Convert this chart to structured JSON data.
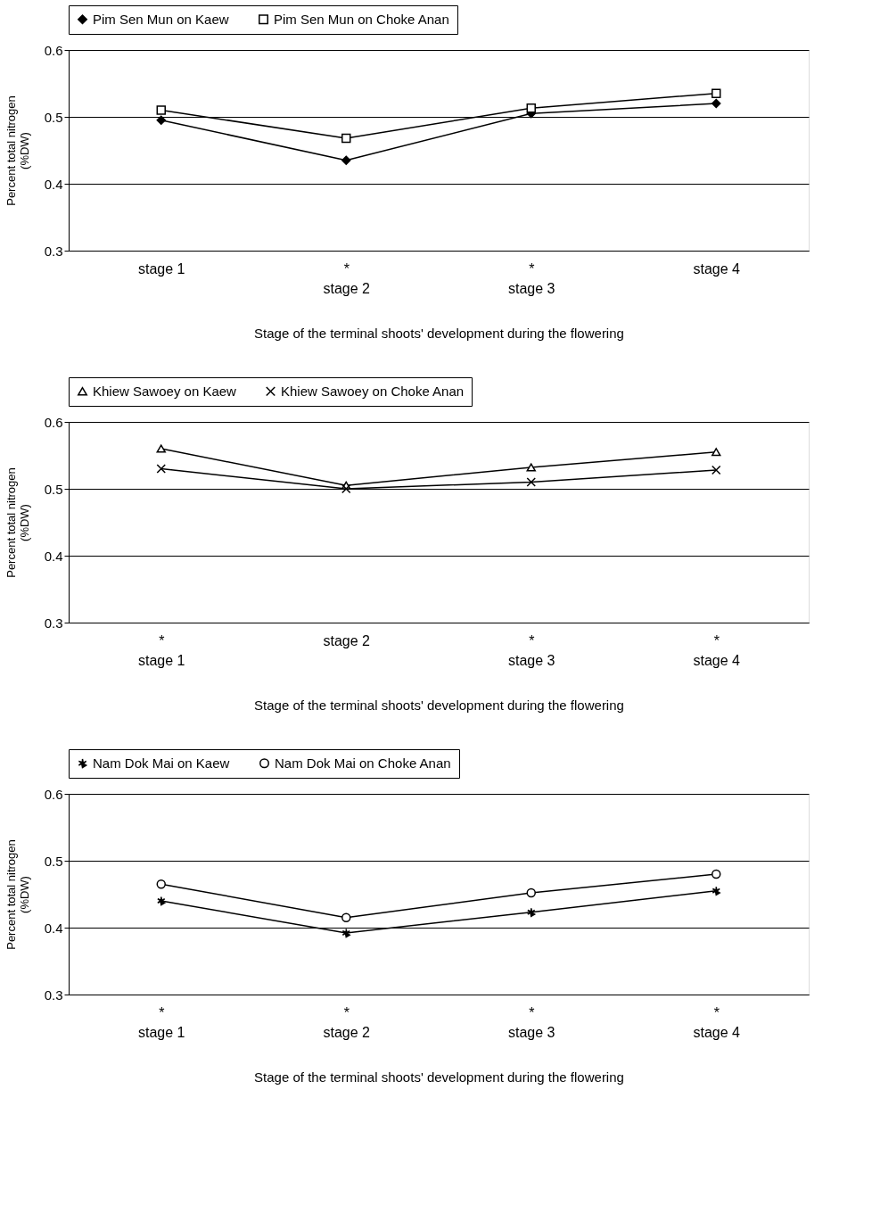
{
  "chart_data": [
    {
      "type": "line",
      "categories": [
        "stage 1",
        "*\nstage 2",
        "*\nstage 3",
        "stage 4"
      ],
      "xlabel": "Stage of the terminal shoots' development during the flowering",
      "ylabel": "Percent total nitrogen\n(%DW)",
      "ylim": [
        0.3,
        0.6
      ],
      "yticks": [
        {
          "value": 0.3,
          "label": "0.3"
        },
        {
          "value": 0.4,
          "label": "0.4"
        },
        {
          "value": 0.5,
          "label": "0.5"
        },
        {
          "value": 0.6,
          "label": "0.6"
        }
      ],
      "grid": "y",
      "legend": "top",
      "series": [
        {
          "name": "Pim Sen Mun on Kaew",
          "color": "#000000",
          "marker": "diamond",
          "values": [
            0.495,
            0.435,
            0.505,
            0.52
          ]
        },
        {
          "name": "Pim Sen Mun on Choke Anan",
          "color": "#000000",
          "marker": "square",
          "values": [
            0.51,
            0.468,
            0.513,
            0.535
          ]
        }
      ]
    },
    {
      "type": "line",
      "categories": [
        "*\nstage 1",
        "stage 2",
        "*\nstage 3",
        "*\nstage 4"
      ],
      "xlabel": "Stage of the terminal shoots' development during the flowering",
      "ylabel": "Percent total nitrogen\n(%DW)",
      "ylim": [
        0.3,
        0.6
      ],
      "yticks": [
        {
          "value": 0.3,
          "label": "0.3"
        },
        {
          "value": 0.4,
          "label": "0.4"
        },
        {
          "value": 0.5,
          "label": "0.5"
        },
        {
          "value": 0.6,
          "label": "0.6"
        }
      ],
      "grid": "y",
      "legend": "top",
      "series": [
        {
          "name": "Khiew Sawoey on Kaew",
          "color": "#000000",
          "marker": "triangle",
          "values": [
            0.56,
            0.505,
            0.532,
            0.555
          ]
        },
        {
          "name": "Khiew Sawoey on Choke Anan",
          "color": "#000000",
          "marker": "cross",
          "values": [
            0.53,
            0.5,
            0.51,
            0.528
          ]
        }
      ]
    },
    {
      "type": "line",
      "categories": [
        "*\nstage 1",
        "*\nstage 2",
        "*\nstage 3",
        "*\nstage 4"
      ],
      "xlabel": "Stage of the terminal shoots' development during the flowering",
      "ylabel": "Percent total nitrogen\n(%DW)",
      "ylim": [
        0.3,
        0.6
      ],
      "yticks": [
        {
          "value": 0.3,
          "label": "0.3"
        },
        {
          "value": 0.4,
          "label": "0.4"
        },
        {
          "value": 0.5,
          "label": "0.5"
        },
        {
          "value": 0.6,
          "label": "0.6"
        }
      ],
      "grid": "y",
      "legend": "top",
      "series": [
        {
          "name": "Nam Dok Mai on Kaew",
          "color": "#000000",
          "marker": "star",
          "values": [
            0.44,
            0.392,
            0.423,
            0.455
          ]
        },
        {
          "name": "Nam Dok Mai on Choke Anan",
          "color": "#000000",
          "marker": "circle",
          "values": [
            0.465,
            0.415,
            0.452,
            0.48
          ]
        }
      ]
    }
  ]
}
